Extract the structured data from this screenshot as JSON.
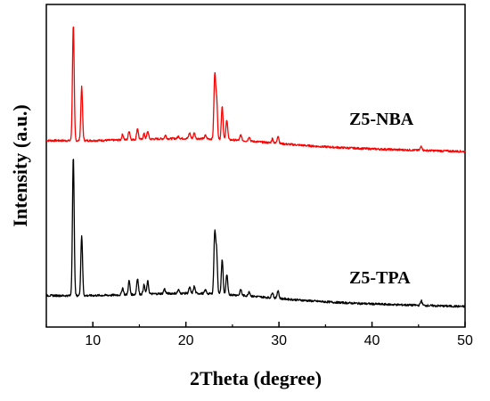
{
  "chart_data": {
    "type": "line",
    "title": "",
    "xlabel": "2Theta (degree)",
    "ylabel": "Intensity (a.u.)",
    "xlim": [
      5,
      50
    ],
    "x_ticks": [
      10,
      20,
      30,
      40,
      50
    ],
    "y_ticks_shown": false,
    "grid": false,
    "series": [
      {
        "name": "Z5-NBA",
        "color": "#ff0000",
        "baseline": 0.45,
        "peaks": [
          {
            "x": 7.9,
            "y": 10.4
          },
          {
            "x": 8.8,
            "y": 4.8
          },
          {
            "x": 13.2,
            "y": 0.5
          },
          {
            "x": 13.9,
            "y": 0.8
          },
          {
            "x": 14.8,
            "y": 1.0
          },
          {
            "x": 15.5,
            "y": 0.5
          },
          {
            "x": 15.9,
            "y": 0.7
          },
          {
            "x": 17.8,
            "y": 0.3
          },
          {
            "x": 19.2,
            "y": 0.2
          },
          {
            "x": 20.4,
            "y": 0.5
          },
          {
            "x": 20.9,
            "y": 0.5
          },
          {
            "x": 22.1,
            "y": 0.3
          },
          {
            "x": 23.1,
            "y": 5.6
          },
          {
            "x": 23.3,
            "y": 3.5
          },
          {
            "x": 23.9,
            "y": 3.0
          },
          {
            "x": 24.4,
            "y": 1.8
          },
          {
            "x": 25.9,
            "y": 0.5
          },
          {
            "x": 26.8,
            "y": 0.4
          },
          {
            "x": 29.3,
            "y": 0.4
          },
          {
            "x": 29.9,
            "y": 0.7
          },
          {
            "x": 45.3,
            "y": 0.4
          }
        ]
      },
      {
        "name": "Z5-TPA",
        "color": "#000000",
        "baseline": 0.3,
        "peaks": [
          {
            "x": 7.9,
            "y": 12.0
          },
          {
            "x": 8.8,
            "y": 5.2
          },
          {
            "x": 13.2,
            "y": 0.6
          },
          {
            "x": 13.9,
            "y": 1.2
          },
          {
            "x": 14.8,
            "y": 1.4
          },
          {
            "x": 15.5,
            "y": 0.8
          },
          {
            "x": 15.9,
            "y": 1.1
          },
          {
            "x": 17.7,
            "y": 0.4
          },
          {
            "x": 19.2,
            "y": 0.3
          },
          {
            "x": 20.4,
            "y": 0.5
          },
          {
            "x": 20.9,
            "y": 0.6
          },
          {
            "x": 22.1,
            "y": 0.3
          },
          {
            "x": 23.1,
            "y": 5.2
          },
          {
            "x": 23.3,
            "y": 3.5
          },
          {
            "x": 23.9,
            "y": 3.0
          },
          {
            "x": 24.4,
            "y": 1.7
          },
          {
            "x": 25.9,
            "y": 0.5
          },
          {
            "x": 26.8,
            "y": 0.4
          },
          {
            "x": 29.3,
            "y": 0.5
          },
          {
            "x": 29.9,
            "y": 0.7
          },
          {
            "x": 45.3,
            "y": 0.4
          }
        ]
      }
    ]
  }
}
